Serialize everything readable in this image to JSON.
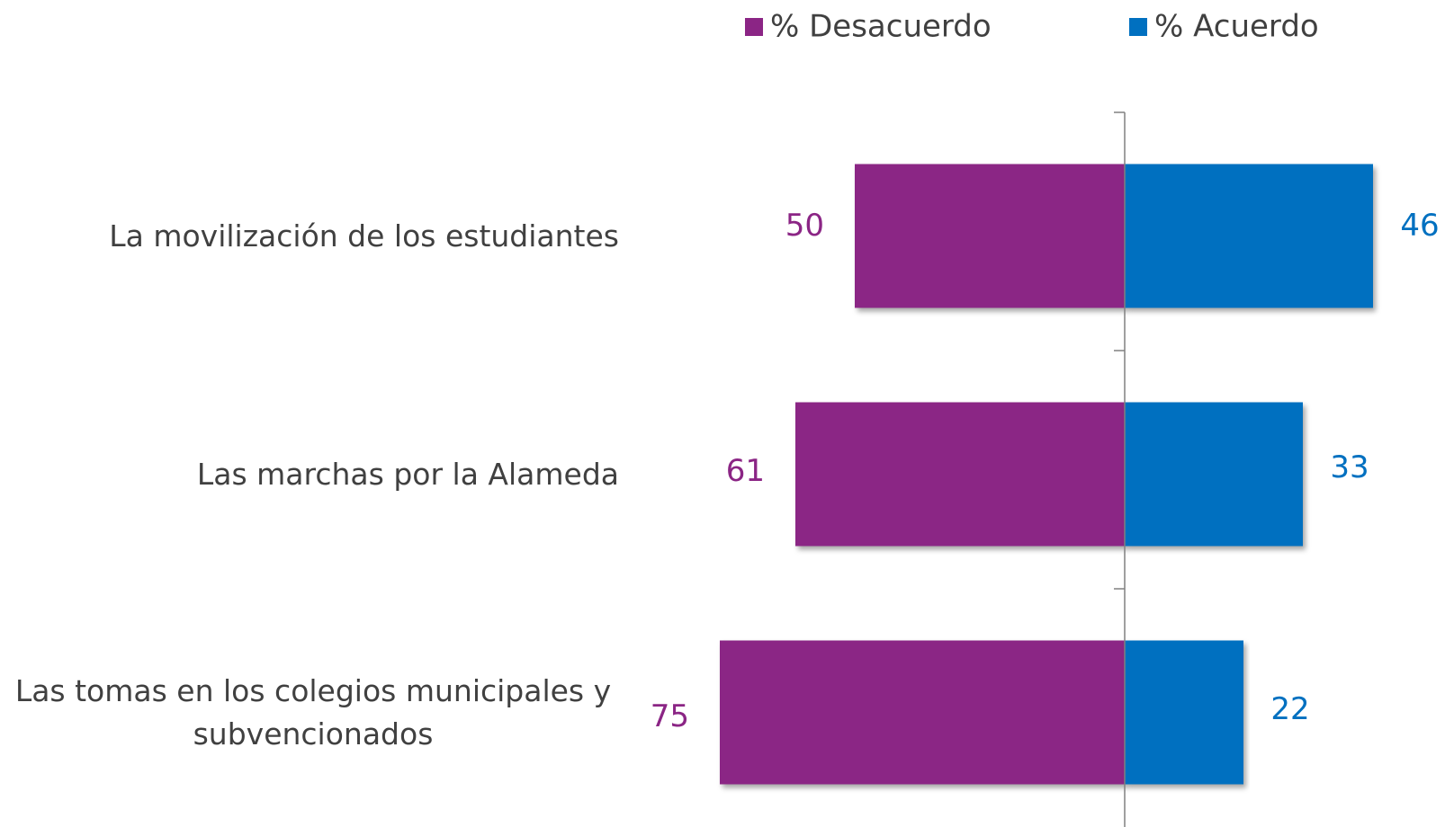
{
  "chart_data": {
    "type": "diverging-bar",
    "categories": [
      "La movilización de los estudiantes",
      "Las marchas por la Alameda",
      "Las tomas en los colegios municipales y subvencionados"
    ],
    "series": [
      {
        "name": "% Desacuerdo",
        "color": "#8b2585",
        "values": [
          50,
          61,
          75
        ]
      },
      {
        "name": "% Acuerdo",
        "color": "#0070c0",
        "values": [
          46,
          33,
          22
        ]
      }
    ]
  }
}
